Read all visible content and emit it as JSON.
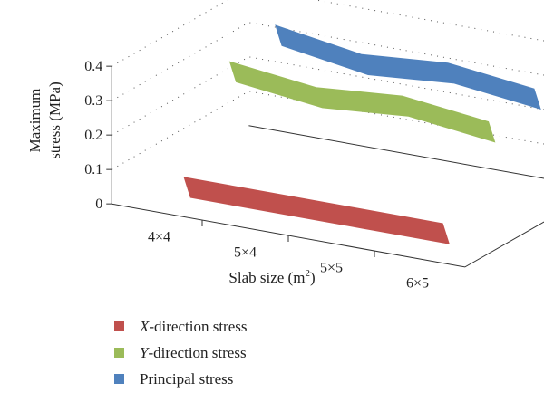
{
  "chart_data": {
    "type": "line",
    "style": "3d-ribbon",
    "categories": [
      "4×4",
      "5×4",
      "5×5",
      "6×5"
    ],
    "ylabel_lines": [
      "Maximum",
      "stress (MPa)"
    ],
    "xlabel": "Slab size (m",
    "xlabel_sup": "2",
    "xlabel_end": ")",
    "yticks": [
      "0",
      "0.1",
      "0.2",
      "0.3",
      "0.4"
    ],
    "ylim": [
      0,
      0.4
    ],
    "grid": "dotted",
    "legend_position": "bottom-left",
    "series": [
      {
        "name_axis": "X",
        "name_rest": "-direction stress",
        "color": "#c0504d",
        "values": [
          0.06,
          0.06,
          0.06,
          0.06
        ]
      },
      {
        "name_axis": "Y",
        "name_rest": "-direction stress",
        "color": "#9bbb59",
        "values": [
          0.32,
          0.29,
          0.31,
          0.28
        ]
      },
      {
        "name_axis": "",
        "name_rest": "Principal stress",
        "color": "#4f81bd",
        "values": [
          0.35,
          0.31,
          0.33,
          0.3
        ]
      }
    ]
  }
}
